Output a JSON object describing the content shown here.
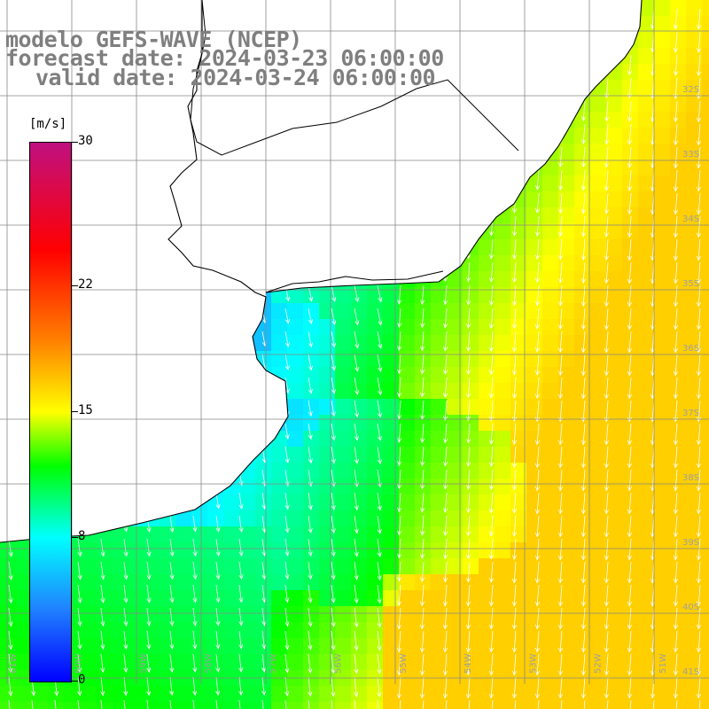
{
  "titles": {
    "model": "modelo GEFS-WAVE (NCEP)",
    "forecast": "forecast date: 2024-03-23 06:00:00",
    "valid": "valid date: 2024-03-24 06:00:00"
  },
  "colorbar": {
    "unit": "[m/s]",
    "ticks": [
      "30",
      "22",
      "15",
      "8",
      "0"
    ],
    "tick_values": [
      30,
      22,
      15,
      8,
      0
    ],
    "range": [
      0,
      30
    ],
    "stops": [
      {
        "v": 0,
        "c": "#0000ff"
      },
      {
        "v": 4,
        "c": "#2080ff"
      },
      {
        "v": 8,
        "c": "#00ffff"
      },
      {
        "v": 12,
        "c": "#00ff00"
      },
      {
        "v": 15,
        "c": "#ffff00"
      },
      {
        "v": 19,
        "c": "#ff8000"
      },
      {
        "v": 24,
        "c": "#ff0000"
      },
      {
        "v": 30,
        "c": "#c01080"
      }
    ]
  },
  "map_labels": {
    "longitudes_bottom": [
      "61W",
      "60W",
      "59W",
      "58W",
      "57W",
      "56W",
      "55W",
      "54W",
      "53W",
      "52W",
      "51W"
    ],
    "latitudes_right": [
      "32S",
      "33S",
      "34S",
      "35S",
      "36S",
      "37S",
      "38S",
      "39S",
      "40S",
      "41S"
    ]
  },
  "field": {
    "wind_direction": "from north-northwest",
    "land_color": "#ffffff",
    "coast_color": "#000000",
    "grid_color": "#888888",
    "arrow_color": "#ffffff"
  }
}
